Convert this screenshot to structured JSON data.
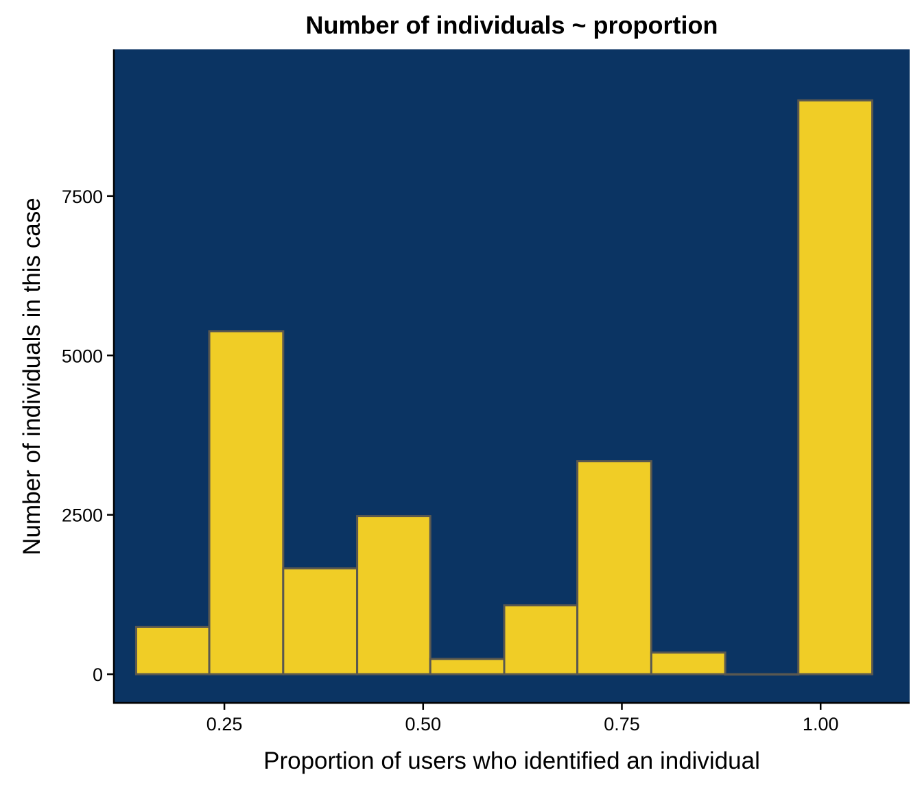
{
  "chart_data": {
    "type": "bar",
    "subtype": "histogram",
    "title": "Number of individuals ~ proportion",
    "xlabel": "Proportion of users who identified an individual",
    "ylabel": "Number of individuals in this case",
    "xlim": [
      0.111,
      1.112
    ],
    "ylim": [
      -450,
      9800
    ],
    "xticks": [
      0.25,
      0.5,
      0.75,
      1.0
    ],
    "xtick_labels": [
      "0.25",
      "0.50",
      "0.75",
      "1.00"
    ],
    "yticks": [
      0,
      2500,
      5000,
      7500
    ],
    "ytick_labels": [
      "0",
      "2500",
      "5000",
      "7500"
    ],
    "bins": [
      {
        "x_start": 0.139,
        "x_end": 0.231,
        "value": 740
      },
      {
        "x_start": 0.231,
        "x_end": 0.324,
        "value": 5380
      },
      {
        "x_start": 0.324,
        "x_end": 0.417,
        "value": 1660
      },
      {
        "x_start": 0.417,
        "x_end": 0.509,
        "value": 2480
      },
      {
        "x_start": 0.509,
        "x_end": 0.602,
        "value": 240
      },
      {
        "x_start": 0.602,
        "x_end": 0.694,
        "value": 1080
      },
      {
        "x_start": 0.694,
        "x_end": 0.787,
        "value": 3340
      },
      {
        "x_start": 0.787,
        "x_end": 0.88,
        "value": 340
      },
      {
        "x_start": 0.88,
        "x_end": 0.972,
        "value": 0
      },
      {
        "x_start": 0.972,
        "x_end": 1.065,
        "value": 9000
      }
    ],
    "grid": false,
    "legend": "none",
    "colors": {
      "panel_background": "#0b3463",
      "bar_fill": "#f0cd26",
      "bar_outline": "#5a5850",
      "axis_line": "#000000"
    }
  }
}
